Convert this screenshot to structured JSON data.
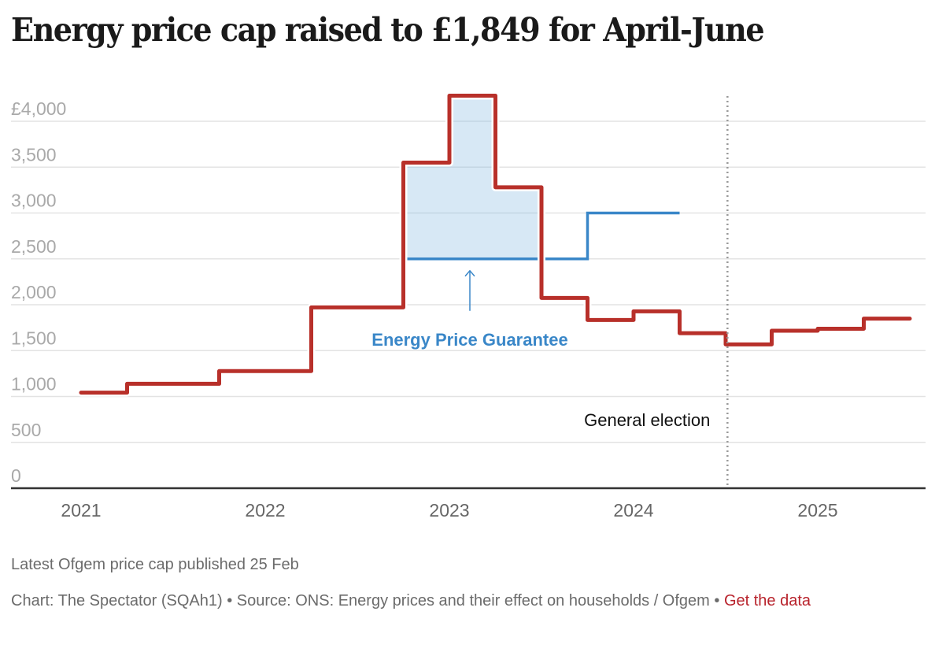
{
  "title": "Energy price cap raised to £1,849 for April-June",
  "footer": {
    "note": "Latest Ofgem price cap published 25 Feb",
    "source_text": "Chart: The Spectator (SQAh1) • Source: ONS: Energy prices and their effect on households / Ofgem • ",
    "get_data_link": "Get the data"
  },
  "colors": {
    "price_cap": "#b8302a",
    "epg_line": "#3a87c8",
    "epg_fill": "#d7e8f5",
    "gridline": "#e3e3e3",
    "axis": "#333333",
    "election_line": "#999999",
    "link": "#b8232c"
  },
  "chart_data": {
    "type": "line",
    "step": true,
    "title": "Energy price cap raised to £1,849 for April-June",
    "xlabel": "",
    "ylabel": "",
    "ylim": [
      0,
      4000
    ],
    "xlim": [
      2020.8,
      2025.75
    ],
    "grid": true,
    "y_ticks": [
      0,
      500,
      1000,
      1500,
      2000,
      2500,
      3000,
      3500,
      4000
    ],
    "y_tick_labels": [
      "0",
      "500",
      "1,000",
      "1,500",
      "2,000",
      "2,500",
      "3,000",
      "3,500",
      "£4,000"
    ],
    "x_ticks": [
      2021,
      2022,
      2023,
      2024,
      2025
    ],
    "x_tick_labels": [
      "2021",
      "2022",
      "2023",
      "2024",
      "2025"
    ],
    "series": [
      {
        "name": "Ofgem price cap",
        "x": [
          2021.0,
          2021.25,
          2021.75,
          2022.25,
          2022.75,
          2023.0,
          2023.25,
          2023.5,
          2023.75,
          2024.0,
          2024.25,
          2024.5,
          2024.75,
          2025.0,
          2025.25
        ],
        "x_end": 2025.5,
        "values": [
          1042,
          1138,
          1277,
          1971,
          3549,
          4279,
          3280,
          2074,
          1834,
          1928,
          1690,
          1568,
          1717,
          1738,
          1849
        ]
      },
      {
        "name": "Energy Price Guarantee",
        "x": [
          2022.75,
          2023.75
        ],
        "x_end": 2024.25,
        "values": [
          2500,
          3000
        ]
      }
    ],
    "shaded_region": {
      "name": "Energy Price Guarantee subsidy gap",
      "from": 2022.75,
      "to": 2023.5,
      "between": [
        "Ofgem price cap",
        "Energy Price Guarantee"
      ]
    },
    "annotations": [
      {
        "text": "Energy Price Guarantee",
        "x": 2023.0,
        "y": 2500,
        "arrow": true
      },
      {
        "text": "General election",
        "x": 2024.51,
        "type": "vertical-line"
      }
    ]
  }
}
